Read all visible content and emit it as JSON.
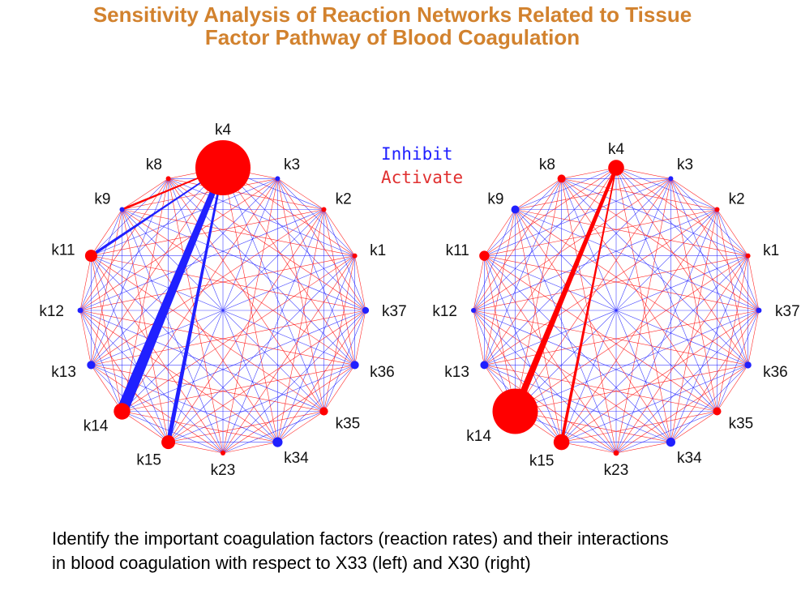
{
  "title": {
    "line1": "Sensitivity Analysis of Reaction Networks Related to Tissue",
    "line2": "Factor Pathway of Blood Coagulation"
  },
  "legend": {
    "inhibit": "Inhibit",
    "activate": "Activate"
  },
  "colors": {
    "title": "#d2822e",
    "inhibit": "#2020ff",
    "activate": "#ff0000"
  },
  "nodes": [
    "k4",
    "k3",
    "k2",
    "k1",
    "k37",
    "k36",
    "k35",
    "k34",
    "k23",
    "k15",
    "k14",
    "k13",
    "k12",
    "k11",
    "k9",
    "k8"
  ],
  "networks": [
    {
      "name": "X33 (left)",
      "node_types": {
        "k4": "activate",
        "k3": "inhibit",
        "k2": "activate",
        "k1": "activate",
        "k37": "inhibit",
        "k36": "inhibit",
        "k35": "activate",
        "k34": "inhibit",
        "k23": "activate",
        "k15": "activate",
        "k14": "activate",
        "k13": "inhibit",
        "k12": "inhibit",
        "k11": "activate",
        "k9": "inhibit",
        "k8": "activate"
      },
      "node_sizes": {
        "k4": 1.0,
        "k3": 0.05,
        "k2": 0.05,
        "k1": 0.05,
        "k37": 0.12,
        "k36": 0.15,
        "k35": 0.15,
        "k34": 0.18,
        "k23": 0.05,
        "k15": 0.25,
        "k14": 0.3,
        "k13": 0.15,
        "k12": 0.1,
        "k11": 0.22,
        "k9": 0.05,
        "k8": 0.08
      },
      "strong_edges": [
        {
          "from": "k4",
          "to": "k14",
          "type": "inhibit",
          "weight": 1.0
        },
        {
          "from": "k4",
          "to": "k15",
          "type": "inhibit",
          "weight": 0.3
        },
        {
          "from": "k4",
          "to": "k11",
          "type": "inhibit",
          "weight": 0.15
        },
        {
          "from": "k4",
          "to": "k9",
          "type": "activate",
          "weight": 0.1
        }
      ]
    },
    {
      "name": "X30 (right)",
      "node_types": {
        "k4": "activate",
        "k3": "inhibit",
        "k2": "activate",
        "k1": "activate",
        "k37": "inhibit",
        "k36": "inhibit",
        "k35": "activate",
        "k34": "inhibit",
        "k23": "activate",
        "k15": "activate",
        "k14": "activate",
        "k13": "inhibit",
        "k12": "inhibit",
        "k11": "activate",
        "k9": "inhibit",
        "k8": "activate"
      },
      "node_sizes": {
        "k4": 0.35,
        "k3": 0.05,
        "k2": 0.05,
        "k1": 0.05,
        "k37": 0.12,
        "k36": 0.15,
        "k35": 0.18,
        "k34": 0.2,
        "k23": 0.12,
        "k15": 0.35,
        "k14": 1.0,
        "k13": 0.18,
        "k12": 0.1,
        "k11": 0.22,
        "k9": 0.18,
        "k8": 0.18
      },
      "strong_edges": [
        {
          "from": "k4",
          "to": "k14",
          "type": "activate",
          "weight": 0.55
        },
        {
          "from": "k4",
          "to": "k15",
          "type": "activate",
          "weight": 0.18
        }
      ]
    }
  ],
  "caption": {
    "line1": "Identify the important coagulation factors (reaction rates) and their interactions",
    "line2": "in blood coagulation with respect to X33 (left) and X30 (right)"
  }
}
